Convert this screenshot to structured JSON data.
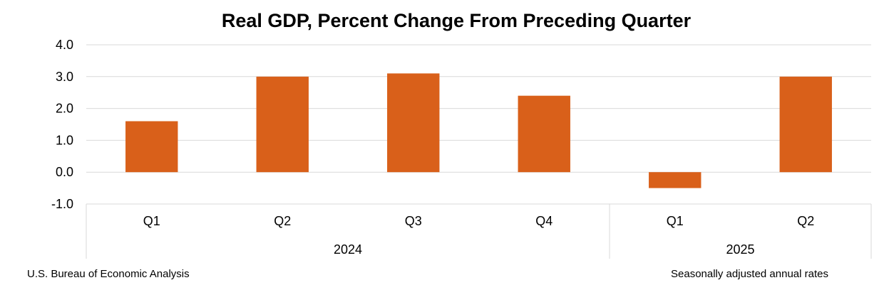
{
  "chart_data": {
    "type": "bar",
    "title": "Real GDP, Percent Change From Preceding Quarter",
    "xlabel": "",
    "ylabel": "",
    "ylim": [
      -1.0,
      4.0
    ],
    "yticks": [
      "4.0",
      "3.0",
      "2.0",
      "1.0",
      "0.0",
      "-1.0"
    ],
    "grid": true,
    "categories": [
      "Q1",
      "Q2",
      "Q3",
      "Q4",
      "Q1",
      "Q2"
    ],
    "groups": [
      {
        "label": "2024",
        "count": 4
      },
      {
        "label": "2025",
        "count": 2
      }
    ],
    "values": [
      1.6,
      3.0,
      3.1,
      2.4,
      -0.5,
      3.0
    ],
    "bar_color": "#D9601A",
    "grid_color": "#D9D9D9"
  },
  "footer": {
    "source": "U.S. Bureau of Economic Analysis",
    "note": "Seasonally adjusted annual rates"
  }
}
